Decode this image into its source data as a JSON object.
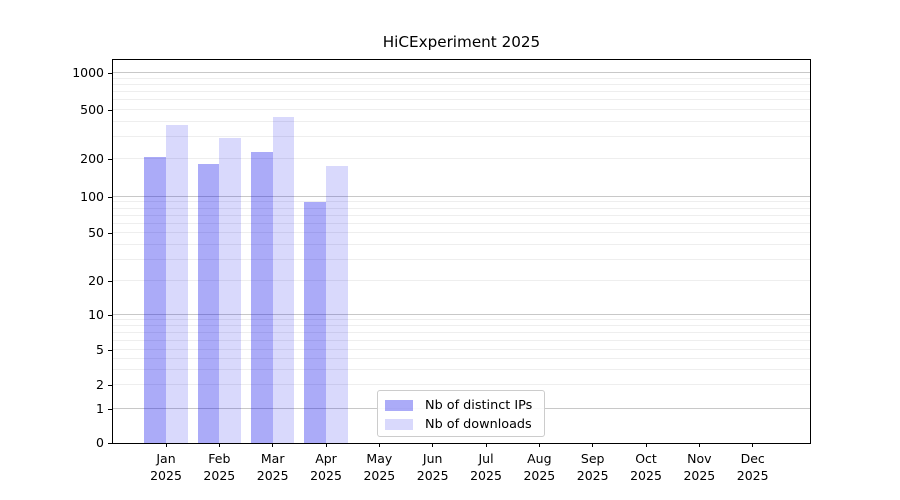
{
  "title": "HiCExperiment 2025",
  "chart_data": {
    "type": "bar",
    "title": "HiCExperiment 2025",
    "categories": [
      "Jan",
      "Feb",
      "Mar",
      "Apr",
      "May",
      "Jun",
      "Jul",
      "Aug",
      "Sep",
      "Oct",
      "Nov",
      "Dec"
    ],
    "year_label": "2025",
    "series": [
      {
        "name": "Nb of distinct IPs",
        "fill": "rgba(0,0,235,0.33)",
        "base_color": "#0000eb",
        "alpha": 0.33,
        "values": [
          207,
          182,
          227,
          90,
          null,
          null,
          null,
          null,
          null,
          null,
          null,
          null
        ]
      },
      {
        "name": "Nb of downloads",
        "fill": "rgba(0,0,235,0.15)",
        "base_color": "#0000eb",
        "alpha": 0.15,
        "values": [
          375,
          296,
          436,
          176,
          null,
          null,
          null,
          null,
          null,
          null,
          null,
          null
        ]
      }
    ],
    "y_scale": "symlog",
    "ylim": [
      0,
      1000
    ],
    "y_ticks": [
      0,
      1,
      2,
      5,
      10,
      20,
      50,
      100,
      200,
      500,
      1000
    ],
    "grid": {
      "orientation": "horizontal",
      "major_color": "#c8c8c8",
      "minor_color": "#eeeeee"
    },
    "legend_position": "lower center",
    "axis_color": "#000000",
    "background_color": "#ffffff"
  },
  "legend": {
    "items": [
      {
        "label": "Nb of distinct IPs"
      },
      {
        "label": "Nb of downloads"
      }
    ]
  }
}
